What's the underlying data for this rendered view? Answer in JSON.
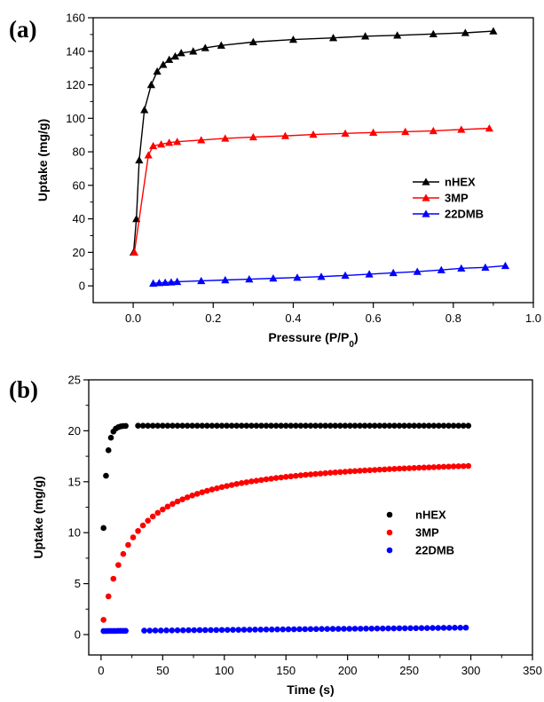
{
  "chart_data": [
    {
      "type": "line",
      "panel_label": "(a)",
      "xlabel": "Pressure (P/P",
      "xlabel_sub": "0",
      "xlabel_end": ")",
      "ylabel": "Uptake (mg/g)",
      "xlim": [
        -0.1,
        1.0
      ],
      "ylim": [
        -10,
        160
      ],
      "xticks": [
        0.0,
        0.2,
        0.4,
        0.6,
        0.8,
        1.0
      ],
      "xtick_labels": [
        "0.0",
        "0.2",
        "0.4",
        "0.6",
        "0.8",
        "1.0"
      ],
      "yticks": [
        0,
        20,
        40,
        60,
        80,
        100,
        120,
        140,
        160
      ],
      "ytick_labels": [
        "0",
        "20",
        "40",
        "60",
        "80",
        "100",
        "120",
        "140",
        "160"
      ],
      "grid": false,
      "legend_position": "right-middle",
      "marker": "triangle",
      "series": [
        {
          "name": "nHEX",
          "color": "#000000",
          "points": [
            [
              0.001,
              20
            ],
            [
              0.008,
              40
            ],
            [
              0.015,
              75
            ],
            [
              0.028,
              105
            ],
            [
              0.045,
              120
            ],
            [
              0.06,
              128
            ],
            [
              0.075,
              132
            ],
            [
              0.09,
              135
            ],
            [
              0.105,
              137
            ],
            [
              0.12,
              139
            ],
            [
              0.15,
              140
            ],
            [
              0.18,
              142
            ],
            [
              0.22,
              143.5
            ],
            [
              0.3,
              145.5
            ],
            [
              0.4,
              147
            ],
            [
              0.5,
              148
            ],
            [
              0.58,
              149
            ],
            [
              0.66,
              149.5
            ],
            [
              0.75,
              150.3
            ],
            [
              0.83,
              151
            ],
            [
              0.9,
              152
            ]
          ]
        },
        {
          "name": "3MP",
          "color": "#ff0000",
          "points": [
            [
              0.003,
              20
            ],
            [
              0.038,
              78
            ],
            [
              0.05,
              83.5
            ],
            [
              0.07,
              84.5
            ],
            [
              0.09,
              85.5
            ],
            [
              0.11,
              86
            ],
            [
              0.17,
              87
            ],
            [
              0.23,
              88
            ],
            [
              0.3,
              88.8
            ],
            [
              0.38,
              89.5
            ],
            [
              0.45,
              90.3
            ],
            [
              0.53,
              91
            ],
            [
              0.6,
              91.5
            ],
            [
              0.68,
              92
            ],
            [
              0.75,
              92.5
            ],
            [
              0.82,
              93.3
            ],
            [
              0.89,
              94
            ]
          ]
        },
        {
          "name": "22DMB",
          "color": "#0000ff",
          "points": [
            [
              0.05,
              1.5
            ],
            [
              0.065,
              1.8
            ],
            [
              0.08,
              2
            ],
            [
              0.095,
              2.2
            ],
            [
              0.11,
              2.5
            ],
            [
              0.17,
              3
            ],
            [
              0.23,
              3.5
            ],
            [
              0.29,
              4
            ],
            [
              0.35,
              4.5
            ],
            [
              0.41,
              5
            ],
            [
              0.47,
              5.5
            ],
            [
              0.53,
              6.2
            ],
            [
              0.59,
              7
            ],
            [
              0.65,
              7.8
            ],
            [
              0.71,
              8.5
            ],
            [
              0.77,
              9.5
            ],
            [
              0.82,
              10.5
            ],
            [
              0.88,
              11
            ],
            [
              0.93,
              12
            ]
          ]
        }
      ]
    },
    {
      "type": "scatter",
      "panel_label": "(b)",
      "xlabel": "Time (s)",
      "ylabel": "Uptake (mg/g)",
      "xlim": [
        -10,
        350
      ],
      "ylim": [
        -2,
        25
      ],
      "xticks": [
        0,
        50,
        100,
        150,
        200,
        250,
        300,
        350
      ],
      "xtick_labels": [
        "0",
        "50",
        "100",
        "150",
        "200",
        "250",
        "300",
        "350"
      ],
      "yticks": [
        0,
        5,
        10,
        15,
        20,
        25
      ],
      "ytick_labels": [
        "0",
        "5",
        "10",
        "15",
        "20",
        "25"
      ],
      "grid": false,
      "legend_position": "right-middle",
      "marker": "circle",
      "series": [
        {
          "name": "nHEX",
          "color": "#000000",
          "model": {
            "kind": "exp",
            "plateau": 20.5,
            "tau": 2.8,
            "start": 2,
            "end": 20,
            "step": 2,
            "start2": 30,
            "end2": 300,
            "step2": 4
          }
        },
        {
          "name": "3MP",
          "color": "#ff0000",
          "model": {
            "kind": "sqrt",
            "a": 17.8,
            "b": 22.5,
            "start": 2,
            "end": 300,
            "step": 4
          }
        },
        {
          "name": "22DMB",
          "color": "#0000ff",
          "model": {
            "kind": "lin",
            "c0": 0.35,
            "slope": 0.0011,
            "start": 2,
            "end": 20,
            "step": 2,
            "start2": 35,
            "end2": 300,
            "step2": 4.5
          }
        }
      ]
    }
  ]
}
